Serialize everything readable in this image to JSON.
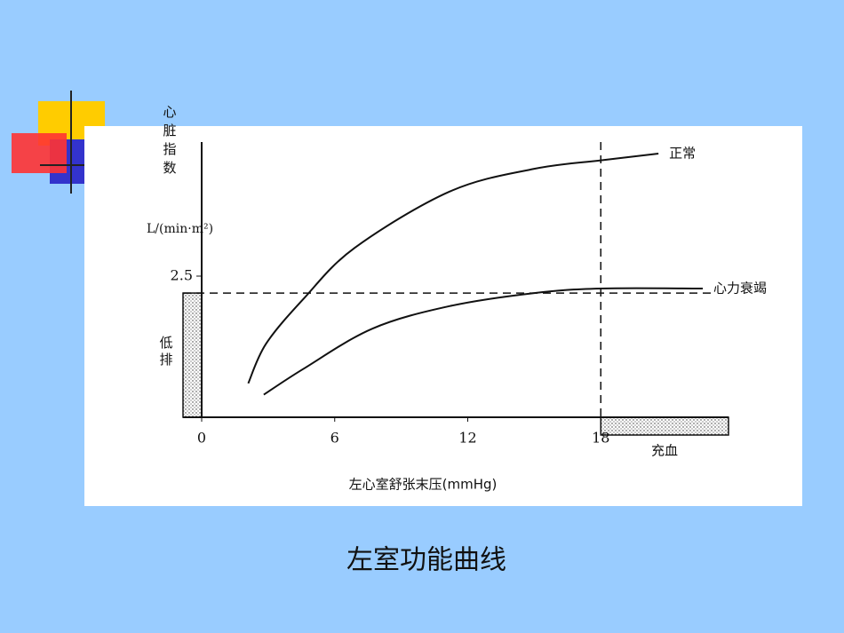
{
  "chart_data": {
    "type": "line",
    "caption": "左室功能曲线",
    "y_label": "心脏指数",
    "y_unit": "L/(min·m²)",
    "x_label": "左心室舒张末压(mmHg)",
    "xlim": [
      0,
      24
    ],
    "xticks": [
      0,
      6,
      12,
      18
    ],
    "ylim": [
      0,
      5
    ],
    "yticks": [
      2.5
    ],
    "series": [
      {
        "name": "正常",
        "color": "#111111",
        "x": [
          2.1,
          2.9,
          4.6,
          6.9,
          11.2,
          15,
          18,
          20.6
        ],
        "values": [
          0.6,
          1.3,
          2.1,
          3.0,
          4.0,
          4.4,
          4.55,
          4.67
        ]
      },
      {
        "name": "心力衰竭",
        "color": "#111111",
        "x": [
          2.8,
          4.6,
          7.7,
          11.2,
          15,
          18,
          22.6
        ],
        "values": [
          0.4,
          0.86,
          1.57,
          1.97,
          2.2,
          2.28,
          2.28
        ]
      }
    ],
    "reference_lines": [
      {
        "axis": "y",
        "value": 2.2
      },
      {
        "axis": "x",
        "value": 18
      }
    ],
    "annotations": [
      "低排",
      "充血"
    ]
  }
}
